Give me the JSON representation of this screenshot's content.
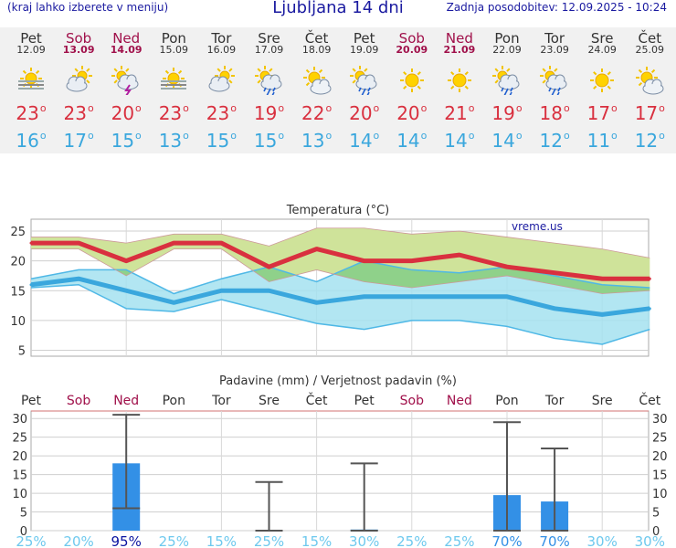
{
  "header": {
    "note": "(kraj lahko izberete v meniju)",
    "title": "Ljubljana 14 dni",
    "updated": "Zadnja posodobitev: 12.09.2025 - 10:24"
  },
  "days": [
    {
      "name": "Pet",
      "date": "12.09",
      "weekend": false,
      "icon": "fog-sun-icon",
      "tmax": "23",
      "tmin": "16"
    },
    {
      "name": "Sob",
      "date": "13.09",
      "weekend": true,
      "icon": "partly-cloudy-icon",
      "tmax": "23",
      "tmin": "17"
    },
    {
      "name": "Ned",
      "date": "14.09",
      "weekend": true,
      "icon": "thunderstorm-sun-icon",
      "tmax": "20",
      "tmin": "15"
    },
    {
      "name": "Pon",
      "date": "15.09",
      "weekend": false,
      "icon": "fog-sun-icon",
      "tmax": "23",
      "tmin": "13"
    },
    {
      "name": "Tor",
      "date": "16.09",
      "weekend": false,
      "icon": "partly-cloudy-icon",
      "tmax": "23",
      "tmin": "15"
    },
    {
      "name": "Sre",
      "date": "17.09",
      "weekend": false,
      "icon": "rain-sun-icon",
      "tmax": "19",
      "tmin": "15"
    },
    {
      "name": "Čet",
      "date": "18.09",
      "weekend": false,
      "icon": "sun-cloud-icon",
      "tmax": "22",
      "tmin": "13"
    },
    {
      "name": "Pet",
      "date": "19.09",
      "weekend": false,
      "icon": "rain-sun-icon",
      "tmax": "20",
      "tmin": "14"
    },
    {
      "name": "Sob",
      "date": "20.09",
      "weekend": true,
      "icon": "sun-icon",
      "tmax": "20",
      "tmin": "14"
    },
    {
      "name": "Ned",
      "date": "21.09",
      "weekend": true,
      "icon": "sun-icon",
      "tmax": "21",
      "tmin": "14"
    },
    {
      "name": "Pon",
      "date": "22.09",
      "weekend": false,
      "icon": "rain-sun-icon",
      "tmax": "19",
      "tmin": "14"
    },
    {
      "name": "Tor",
      "date": "23.09",
      "weekend": false,
      "icon": "rain-sun-icon",
      "tmax": "18",
      "tmin": "12"
    },
    {
      "name": "Sre",
      "date": "24.09",
      "weekend": false,
      "icon": "sun-icon",
      "tmax": "17",
      "tmin": "11"
    },
    {
      "name": "Čet",
      "date": "25.09",
      "weekend": false,
      "icon": "sun-cloud-icon",
      "tmax": "17",
      "tmin": "12"
    }
  ],
  "colors": {
    "max": "#d9303f",
    "min": "#3aa7dd",
    "weekend": "#a0104a",
    "max_band": "#cfe39a",
    "min_band": "#a4e2f0",
    "overlap": "#8fd18a",
    "precip_bar": "#3390e6",
    "prob_low": "#6ec9ee",
    "prob_high": "#0a14a0"
  },
  "chart_data": [
    {
      "type": "line",
      "title": "Temperatura (°C)",
      "watermark": "vreme.us",
      "categories": [
        "12.09",
        "13.09",
        "14.09",
        "15.09",
        "16.09",
        "17.09",
        "18.09",
        "19.09",
        "20.09",
        "21.09",
        "22.09",
        "23.09",
        "24.09",
        "25.09"
      ],
      "ylim": [
        4,
        27
      ],
      "yticks": [
        5,
        10,
        15,
        20,
        25
      ],
      "grid": true,
      "series": [
        {
          "role": "max",
          "values": [
            23,
            23,
            20,
            23,
            23,
            19,
            22,
            20,
            20,
            21,
            19,
            18,
            17,
            17
          ]
        },
        {
          "role": "min",
          "values": [
            16,
            17,
            15,
            13,
            15,
            15,
            13,
            14,
            14,
            14,
            14,
            12,
            11,
            12
          ]
        }
      ],
      "bands": [
        {
          "role": "max_range",
          "upper": [
            24,
            24,
            23,
            24.5,
            24.5,
            22.5,
            25.5,
            25.5,
            24.5,
            25,
            24,
            23,
            22,
            20.5
          ],
          "lower": [
            22,
            22,
            17.5,
            22,
            22,
            16.5,
            18.5,
            16.5,
            15.5,
            16.5,
            17.5,
            16,
            14.5,
            15
          ]
        },
        {
          "role": "min_range",
          "upper": [
            17,
            18.5,
            18.5,
            14.5,
            17,
            19,
            16.5,
            20,
            18.5,
            18,
            19,
            17.5,
            16,
            15.5
          ],
          "lower": [
            15.5,
            16,
            12,
            11.5,
            13.5,
            11.5,
            9.5,
            8.5,
            10,
            10,
            9,
            7,
            6,
            8.5
          ]
        }
      ]
    },
    {
      "type": "bar",
      "title": "Padavine (mm) / Verjetnost padavin (%)",
      "categories": [
        "Pet",
        "Sob",
        "Ned",
        "Pon",
        "Tor",
        "Sre",
        "Čet",
        "Pet",
        "Sob",
        "Ned",
        "Pon",
        "Tor",
        "Sre",
        "Čet"
      ],
      "weekend": [
        false,
        true,
        true,
        false,
        false,
        false,
        false,
        false,
        true,
        true,
        false,
        false,
        false,
        false
      ],
      "ylim": [
        0,
        32
      ],
      "yticks": [
        0,
        5,
        10,
        15,
        20,
        25,
        30
      ],
      "precip_mm": [
        0,
        0,
        18,
        0,
        0,
        0,
        0,
        0.3,
        0,
        0,
        9.5,
        7.8,
        0,
        0
      ],
      "ranges": [
        null,
        null,
        [
          6,
          31
        ],
        null,
        null,
        [
          0,
          13
        ],
        null,
        [
          0,
          18
        ],
        null,
        null,
        [
          0,
          29
        ],
        [
          0,
          22
        ],
        null,
        null
      ],
      "probability": [
        "25%",
        "20%",
        "95%",
        "25%",
        "15%",
        "25%",
        "15%",
        "30%",
        "25%",
        "25%",
        "70%",
        "70%",
        "30%",
        "30%"
      ],
      "probability_values": [
        25,
        20,
        95,
        25,
        15,
        25,
        15,
        30,
        25,
        25,
        70,
        70,
        30,
        30
      ]
    }
  ]
}
